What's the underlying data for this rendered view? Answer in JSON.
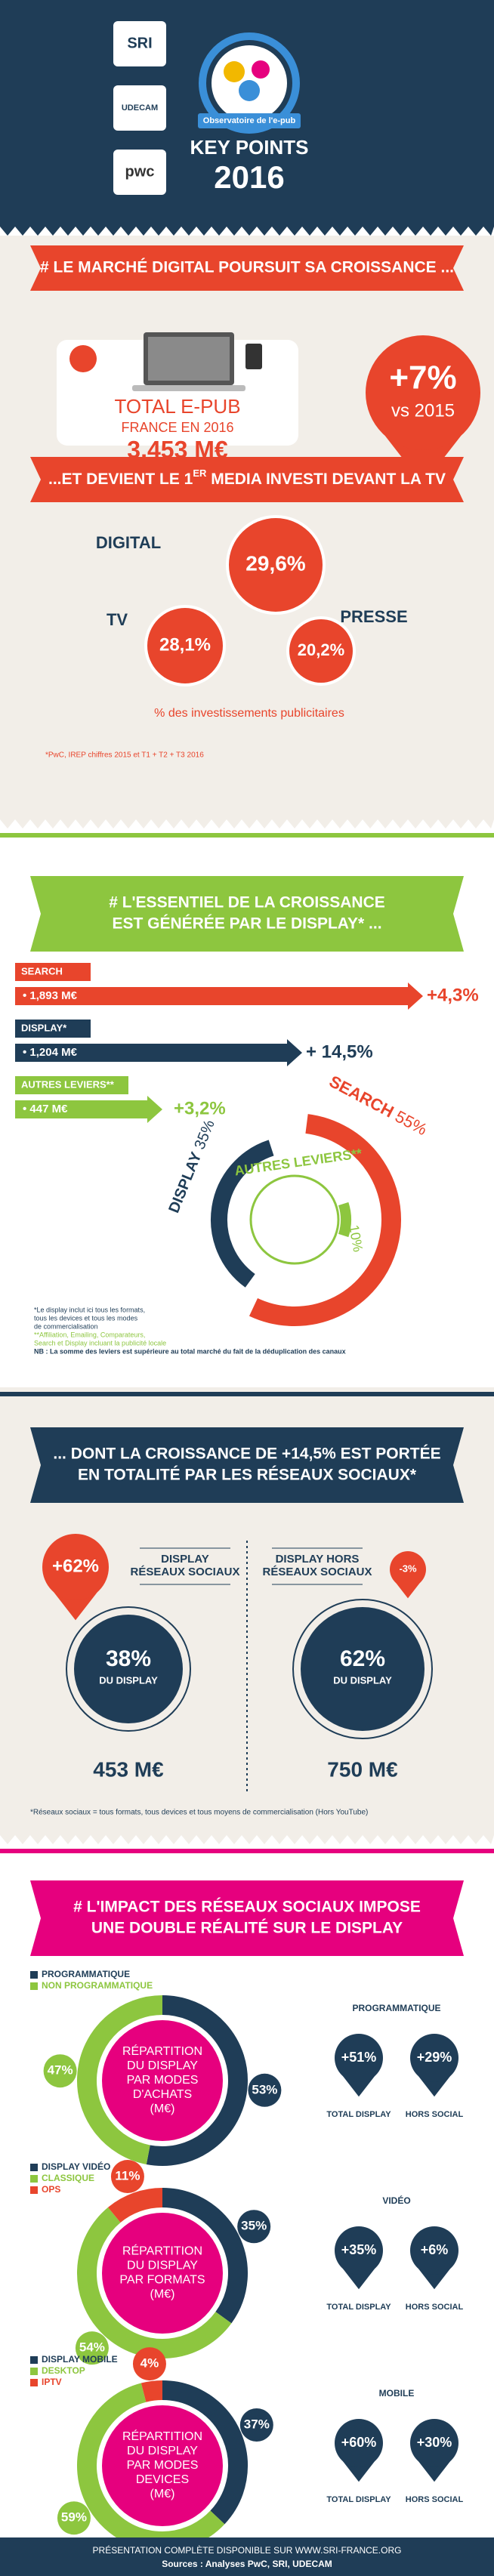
{
  "header": {
    "logos": [
      "SRI",
      "UDECAM",
      "pwc"
    ],
    "badge": "Observatoire de l'e-pub",
    "title": "KEY POINTS",
    "year": "2016"
  },
  "section1": {
    "banner": "# LE MARCHÉ DIGITAL POURSUIT SA CROISSANCE ...",
    "total_label": "TOTAL E-PUB",
    "total_sub": "FRANCE EN 2016",
    "total_value": "3,453 M€",
    "growth": "+7%",
    "growth_sub": "vs 2015",
    "banner2": [
      "...ET DEVIENT LE 1",
      "ER",
      " MEDIA INVESTI DEVANT LA TV"
    ],
    "media": [
      {
        "name": "DIGITAL",
        "share": "29,6%"
      },
      {
        "name": "TV",
        "share": "28,1%"
      },
      {
        "name": "PRESSE",
        "share": "20,2%"
      }
    ],
    "caption": "% des investissements publicitaires",
    "source": "*PwC, IREP chiffres 2015 et T1 + T2 + T3 2016"
  },
  "section2": {
    "banner": [
      "# L'ESSENTIEL DE LA CROISSANCE",
      "EST GÉNÉRÉE PAR LE DISPLAY* ..."
    ],
    "bars": [
      {
        "name": "SEARCH",
        "amount": "• 1,893 M€",
        "growth": "+4,3%"
      },
      {
        "name": "DISPLAY*",
        "amount": "• 1,204 M€",
        "growth": "+ 14,5%"
      },
      {
        "name": "AUTRES LEVIERS**",
        "amount": "• 447 M€",
        "growth": "+3,2%"
      }
    ],
    "donut": [
      {
        "name": "SEARCH",
        "value": 55,
        "label": "55%"
      },
      {
        "name": "DISPLAY",
        "value": 35,
        "label": "35%"
      },
      {
        "name": "AUTRES LEVIERS**",
        "value": 10,
        "label": "10%"
      }
    ],
    "notes": [
      "*Le display inclut ici tous les formats,",
      "tous les devices et tous les modes",
      "de commercialisation",
      "**Affiliation, Emailing, Comparateurs,",
      "Search et Display incluant la publicité locale",
      "NB : La somme des leviers est supérieure au total marché du fait de la déduplication des canaux"
    ]
  },
  "section3": {
    "banner": [
      "... DONT LA CROISSANCE DE +14,5% EST PORTÉE",
      "EN TOTALITÉ PAR LES RÉSEAUX SOCIAUX*"
    ],
    "groups": [
      {
        "growth": "+62%",
        "label": [
          "DISPLAY",
          "RÉSEAUX SOCIAUX"
        ],
        "share": "38%",
        "share_sub": "DU DISPLAY",
        "amount": "453 M€"
      },
      {
        "growth": "-3%",
        "label": [
          "DISPLAY HORS",
          "RÉSEAUX SOCIAUX"
        ],
        "share": "62%",
        "share_sub": "DU DISPLAY",
        "amount": "750 M€"
      }
    ],
    "note": "*Réseaux sociaux = tous formats, tous devices et tous moyens de commercialisation (Hors YouTube)"
  },
  "section4": {
    "banner": [
      "# L'IMPACT DES RÉSEAUX SOCIAUX IMPOSE",
      "UNE DOUBLE RÉALITÉ SUR LE DISPLAY"
    ],
    "blocks": [
      {
        "legend": [
          {
            "name": "PROGRAMMATIQUE",
            "color": "#1f3d57",
            "value": 53,
            "label": "53%"
          },
          {
            "name": "NON PROGRAMMATIQUE",
            "color": "#8dc63f",
            "value": 47,
            "label": "47%"
          }
        ],
        "center": [
          "RÉPARTITION",
          "DU DISPLAY",
          "PAR MODES",
          "D'ACHATS",
          "(M€)"
        ],
        "heading": "PROGRAMMATIQUE",
        "pins": [
          {
            "growth": "+51%",
            "label": "TOTAL DISPLAY"
          },
          {
            "growth": "+29%",
            "label": "HORS SOCIAL"
          }
        ]
      },
      {
        "legend": [
          {
            "name": "DISPLAY VIDÉO",
            "color": "#1f3d57",
            "value": 35,
            "label": "35%"
          },
          {
            "name": "CLASSIQUE",
            "color": "#8dc63f",
            "value": 54,
            "label": "54%"
          },
          {
            "name": "OPS",
            "color": "#e8452c",
            "value": 11,
            "label": "11%"
          }
        ],
        "center": [
          "RÉPARTITION",
          "DU DISPLAY",
          "PAR FORMATS",
          "(M€)"
        ],
        "heading": "VIDÉO",
        "pins": [
          {
            "growth": "+35%",
            "label": "TOTAL DISPLAY"
          },
          {
            "growth": "+6%",
            "label": "HORS SOCIAL"
          }
        ]
      },
      {
        "legend": [
          {
            "name": "DISPLAY MOBILE",
            "color": "#1f3d57",
            "value": 37,
            "label": "37%"
          },
          {
            "name": "DESKTOP",
            "color": "#8dc63f",
            "value": 59,
            "label": "59%"
          },
          {
            "name": "IPTV",
            "color": "#e8452c",
            "value": 4,
            "label": "4%"
          }
        ],
        "center": [
          "RÉPARTITION",
          "DU DISPLAY",
          "PAR MODES",
          "DEVICES",
          "(M€)"
        ],
        "heading": "MOBILE",
        "pins": [
          {
            "growth": "+60%",
            "label": "TOTAL DISPLAY"
          },
          {
            "growth": "+30%",
            "label": "HORS SOCIAL"
          }
        ]
      }
    ]
  },
  "footer": [
    "PRÉSENTATION COMPLÈTE DISPONIBLE SUR WWW.SRI-FRANCE.ORG",
    "Sources : Analyses PwC, SRI, UDECAM"
  ]
}
